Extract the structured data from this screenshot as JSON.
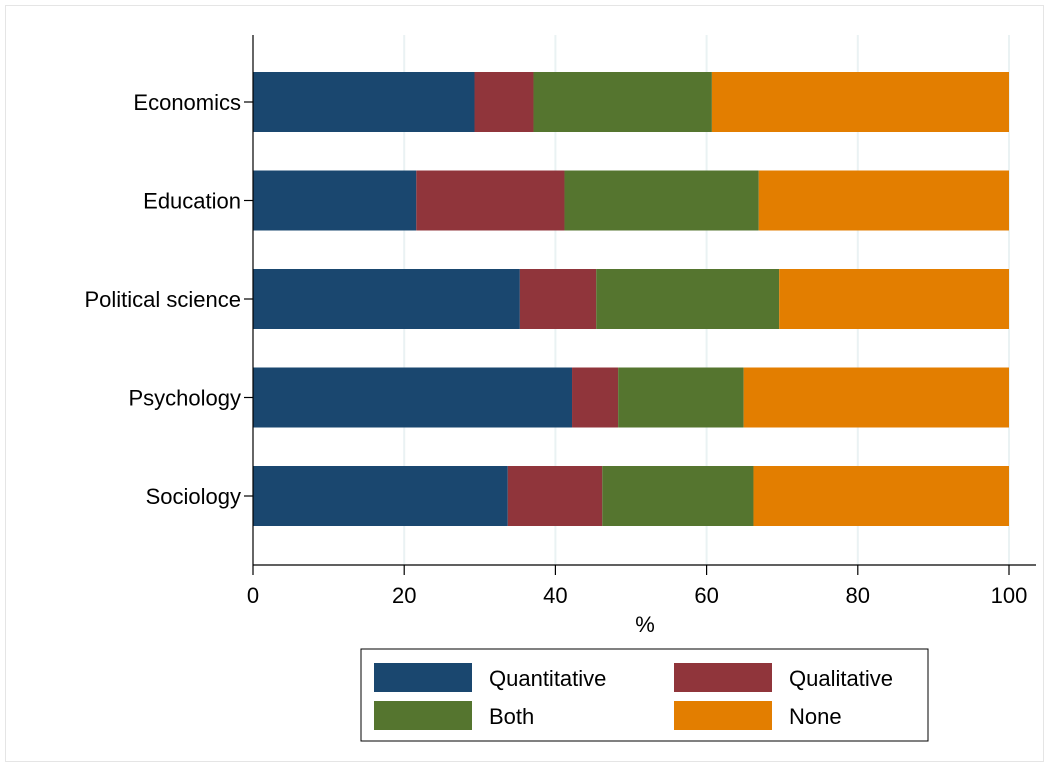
{
  "chart_data": {
    "type": "bar",
    "orientation": "horizontal",
    "stacked": true,
    "categories": [
      "Economics",
      "Education",
      "Political science",
      "Psychology",
      "Sociology"
    ],
    "series": [
      {
        "name": "Quantitative",
        "color": "#1a476f",
        "values": [
          29.3,
          21.6,
          35.3,
          42.2,
          33.7
        ]
      },
      {
        "name": "Qualitative",
        "color": "#90353b",
        "values": [
          7.8,
          19.6,
          10.1,
          6.1,
          12.5
        ]
      },
      {
        "name": "Both",
        "color": "#55752f",
        "values": [
          23.6,
          25.7,
          24.2,
          16.6,
          20.0
        ]
      },
      {
        "name": "None",
        "color": "#e37e00",
        "values": [
          39.3,
          33.1,
          30.4,
          35.1,
          33.8
        ]
      }
    ],
    "xlabel": "%",
    "xlim": [
      0,
      100
    ],
    "xticks": [
      0,
      20,
      40,
      60,
      80,
      100
    ],
    "grid": "vertical",
    "legend_position": "bottom"
  }
}
